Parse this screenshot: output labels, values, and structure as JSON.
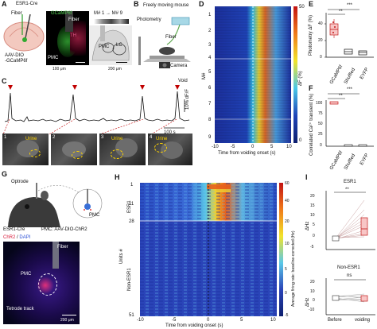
{
  "panels": {
    "A": {
      "letter": "A",
      "line_label": "ESR1-Cre",
      "fiber_label": "Fiber",
      "virus_label_1": "AAV-DIO",
      "virus_label_2": "-GCaMP6f",
      "stain_label": "GCaMP6f",
      "th_label": "TH",
      "fiber_label_2": "Fiber",
      "pmc_label": "PMC",
      "pmc_label_2": "PMC",
      "lc_label": "LC",
      "mouse_range": "M# 1 → M# 9",
      "scale_1": "100 μm",
      "scale_2": "200 μm"
    },
    "B": {
      "letter": "B",
      "title": "Freely moving mouse",
      "photometry_label": "Photometry",
      "fiber_label": "Fiber",
      "camera_label": "Camera"
    },
    "C": {
      "letter": "C",
      "void_label": "Void",
      "scale_y": "10% dF/F",
      "scale_x": "100 s",
      "frames": [
        "1",
        "2",
        "3",
        "4"
      ],
      "urine_label": "Urine"
    },
    "D": {
      "letter": "D",
      "ylabel": "M#",
      "xlabel": "Time from voiding onset (s)",
      "xticks": [
        "-10",
        "-5",
        "0",
        "5",
        "10"
      ],
      "yticks": [
        "1",
        "2",
        "3",
        "4",
        "5",
        "6",
        "7",
        "8",
        "9"
      ],
      "colorbar_label": "ΔF (%)",
      "colorbar_max": "50",
      "colorbar_min": "0"
    },
    "E": {
      "letter": "E",
      "ylabel": "Photometry ΔF (%)",
      "yticks": [
        "0",
        "20",
        "40"
      ],
      "categories": [
        "GCaMP6f",
        "Shuffled",
        "EYFP"
      ],
      "sig_1": "**",
      "sig_2": "***"
    },
    "F": {
      "letter": "F",
      "ylabel": "Correlated Ca²⁺ transient (%)",
      "yticks": [
        "0",
        "25",
        "50",
        "75",
        "100"
      ],
      "categories": [
        "GCaMP6f",
        "Shuffled",
        "EYFP"
      ],
      "sig_1": "**",
      "sig_2": "***"
    },
    "G": {
      "letter": "G",
      "optrode_label": "Optrode",
      "pmc_label": "PMC",
      "line_label": "ESR1-Cre",
      "virus_label": "PMC: AAV-DIO-ChR2",
      "stain_label_1": "ChR2",
      "stain_label_2": "DAPI",
      "fiber_label": "Fiber",
      "pmc_label_2": "PMC",
      "tetrode_label": "Tetrode track",
      "scale": "200 μm"
    },
    "H": {
      "letter": "H",
      "ylabel": "Units #",
      "group_1": "ESR1",
      "group_2": "Non-ESR1",
      "yticks": [
        "1",
        "11",
        "28",
        "51"
      ],
      "xticks": [
        "-10",
        "-5",
        "0",
        "5",
        "10"
      ],
      "xlabel": "Time from voiding onset (s)",
      "colorbar_label": "Average firing rate: baseline-corrected (Hz)",
      "colorbar_ticks": [
        "60",
        "40",
        "20",
        "10",
        "5",
        "0",
        "-5"
      ]
    },
    "I": {
      "letter": "I",
      "title_1": "ESR1",
      "title_2": "Non-ESR1",
      "sig_1": "**",
      "sig_2": "ns",
      "ylabel": "ΔHz",
      "top_yticks": [
        "20",
        "15",
        "10",
        "5",
        "0",
        "-5"
      ],
      "bottom_yticks": [
        "20",
        "10",
        "0",
        "-10"
      ],
      "categories": [
        "Before",
        "voiding"
      ]
    }
  },
  "chart_data": [
    {
      "type": "heatmap",
      "panel": "D",
      "x_range": [
        -10,
        10
      ],
      "rows": 9,
      "color_range": [
        0,
        50
      ],
      "xlabel": "Time from voiding onset (s)",
      "ylabel": "M#"
    },
    {
      "type": "box",
      "panel": "E",
      "categories": [
        "GCaMP6f",
        "Shuffled",
        "EYFP"
      ],
      "medians": [
        32,
        6,
        4
      ],
      "ylim": [
        0,
        45
      ]
    },
    {
      "type": "bar",
      "panel": "F",
      "categories": [
        "GCaMP6f",
        "Shuffled",
        "EYFP"
      ],
      "values": [
        100,
        2,
        2
      ],
      "ylim": [
        0,
        105
      ]
    },
    {
      "type": "heatmap",
      "panel": "H",
      "x_range": [
        -10,
        10
      ],
      "rows": 51,
      "color_range": [
        -5,
        60
      ],
      "xlabel": "Time from voiding onset (s)",
      "ylabel": "Units #"
    },
    {
      "type": "paired",
      "panel": "I",
      "categories": [
        "Before",
        "voiding"
      ],
      "groups": [
        "ESR1",
        "Non-ESR1"
      ]
    }
  ]
}
